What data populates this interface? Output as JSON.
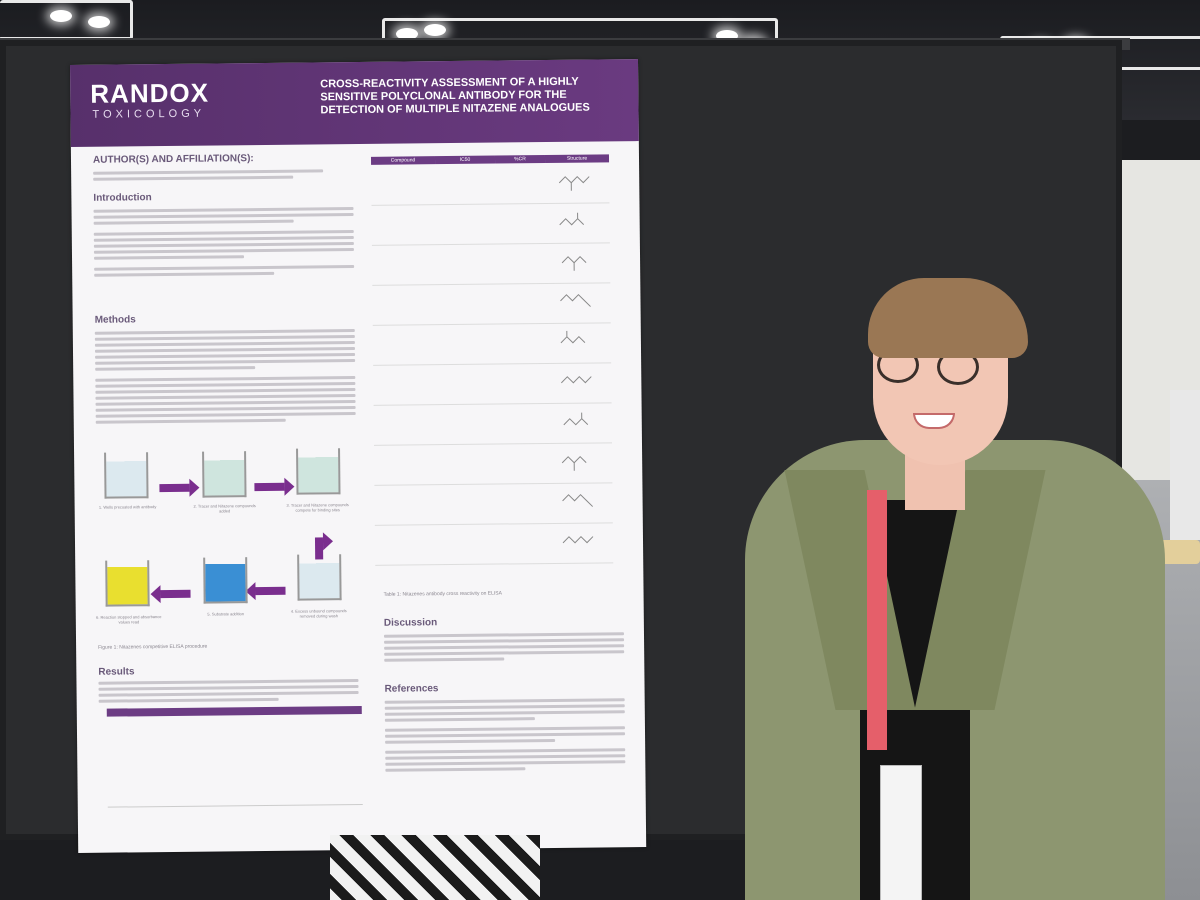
{
  "poster": {
    "brand": "RANDOX",
    "brand_sub": "TOXICOLOGY",
    "title": "CROSS-REACTIVITY ASSESSMENT OF A HIGHLY SENSITIVE POLYCLONAL ANTIBODY FOR THE DETECTION OF MULTIPLE NITAZENE ANALOGUES",
    "sections": {
      "authors": "AUTHOR(S) AND AFFILIATION(S):",
      "introduction": "Introduction",
      "methods": "Methods",
      "results": "Results",
      "discussion": "Discussion",
      "references": "References"
    },
    "table": {
      "headers": [
        "Compound",
        "IC50",
        "%CR",
        "Structure"
      ],
      "caption": "Table 1: Nitazenes antibody cross reactivity on ELISA"
    },
    "figure_caption": "Figure 1: Nitazenes competitive ELISA procedure",
    "steps": [
      "1. Wells precoated with antibody",
      "2. Tracer and Nitazene compounds added",
      "3. Tracer and Nitazene compounds compete for binding sites",
      "4. Excess unbound compounds removed during wash",
      "5. Substrate addition",
      "6. Reaction stopped and absorbance values read"
    ],
    "colors": {
      "header": "#5c3273",
      "accent": "#7a2e8e"
    }
  },
  "icons": {
    "logo": "randox-logo",
    "arrow": "arrow-icon"
  }
}
